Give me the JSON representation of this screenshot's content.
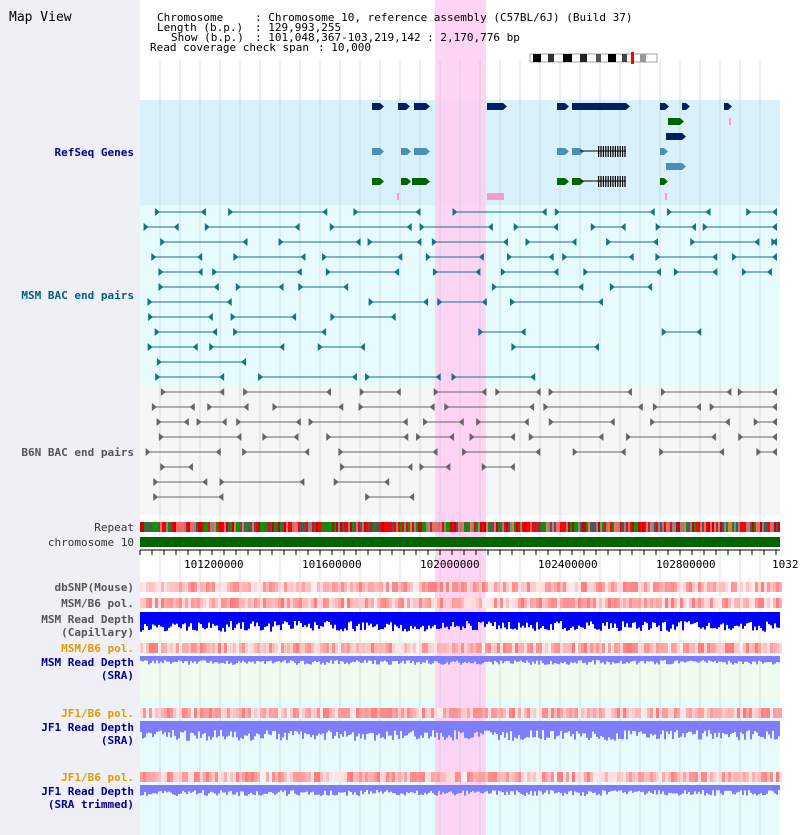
{
  "app_title": "Map View",
  "header": {
    "chromosome_key": "Chromosome",
    "chromosome_value": ": Chromosome 10, reference assembly (C57BL/6J) (Build 37)",
    "length_key": "Length (b.p.)",
    "length_value": ": 129,993,255",
    "show_key": "Show (b.p.)",
    "show_value": ": 101,048,367-103,219,142 : 2,170,776 bp",
    "coverage_key": "Read coverage check span",
    "coverage_value": ": 10,000"
  },
  "tracks": {
    "refseq": "RefSeq Genes",
    "msm_bac": "MSM BAC end pairs",
    "b6n_bac": "B6N BAC end pairs",
    "repeat": "Repeat",
    "chromosome": "chromosome 10",
    "dbsnp": "dbSNP(Mouse)",
    "msm_b6_pol_1": "MSM/B6 pol.",
    "msm_read_depth_cap_1": "MSM Read Depth",
    "msm_read_depth_cap_2": "(Capillary)",
    "msm_b6_pol_2": "MSM/B6 pol.",
    "msm_read_depth_sra_1": "MSM Read Depth",
    "msm_read_depth_sra_2": "(SRA)",
    "jf1_b6_pol_1": "JF1/B6 pol.",
    "jf1_read_depth_sra_1": "JF1 Read Depth",
    "jf1_read_depth_sra_2": "(SRA)",
    "jf1_b6_pol_2": "JF1/B6 pol.",
    "jf1_read_depth_trim_1": "JF1 Read Depth",
    "jf1_read_depth_trim_2": "(SRA trimmed)"
  },
  "axis": {
    "ticks": [
      "101200000",
      "101600000",
      "102000000",
      "102400000",
      "102800000",
      "1032"
    ]
  },
  "colors": {
    "gene_dark": "#002060",
    "gene_mid": "#4a8fb8",
    "gene_green": "#006400",
    "gene_pink": "#ff99cc",
    "bac_teal": "#1a6f8a",
    "bac_gray": "#666666",
    "highlight": "#ffccf2",
    "chrom_green": "#006400",
    "depth_blue": "#0000ff",
    "depth_light": "#7d7dff",
    "snp_red": "#ff0000"
  }
}
